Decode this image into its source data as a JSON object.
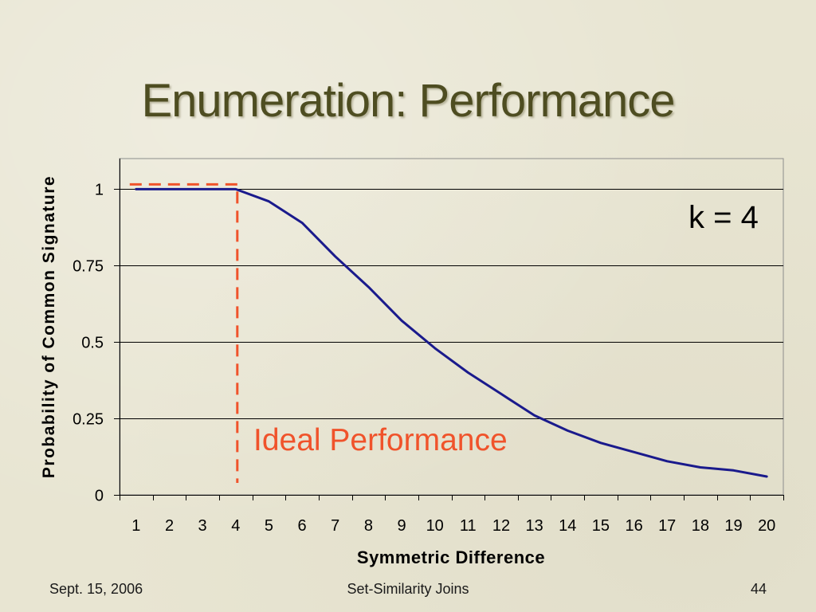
{
  "slide": {
    "title": "Enumeration: Performance",
    "footer_left": "Sept. 15, 2006",
    "footer_center": "Set-Similarity Joins",
    "footer_right": "44"
  },
  "colors": {
    "background": "#e8e5d2",
    "title": "#4e4d21",
    "curve": "#1a1a8c",
    "ideal": "#f0532b",
    "gridline": "#000000"
  },
  "chart_data": {
    "type": "line",
    "xlabel": "Symmetric Difference",
    "ylabel": "Probability of Common Signature",
    "categories": [
      "1",
      "2",
      "3",
      "4",
      "5",
      "6",
      "7",
      "8",
      "9",
      "10",
      "11",
      "12",
      "13",
      "14",
      "15",
      "16",
      "17",
      "18",
      "19",
      "20"
    ],
    "series": [
      {
        "values": [
          1,
          1,
          1,
          1,
          0.96,
          0.89,
          0.78,
          0.68,
          0.57,
          0.48,
          0.4,
          0.33,
          0.26,
          0.21,
          0.17,
          0.14,
          0.11,
          0.09,
          0.08,
          0.06
        ]
      }
    ],
    "ylim": [
      0,
      1.1
    ],
    "yticks": [
      0,
      0.25,
      0.5,
      0.75,
      1
    ],
    "grid": "horizontal",
    "legend": "none",
    "reference_line": {
      "label": "Ideal Performance",
      "style": "dashed",
      "x": [
        1,
        4,
        4
      ],
      "y": [
        1,
        1,
        0
      ]
    },
    "annotations": [
      {
        "text": "k = 4"
      }
    ]
  }
}
